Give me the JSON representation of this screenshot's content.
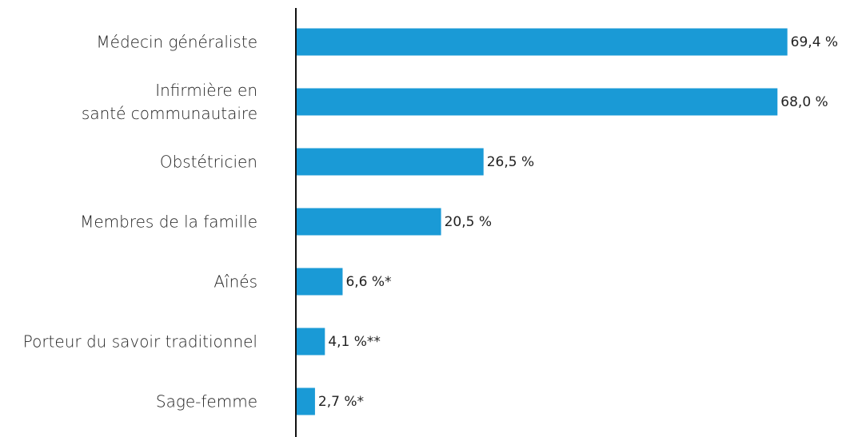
{
  "chart_data": {
    "type": "bar",
    "orientation": "horizontal",
    "categories": [
      "Médecin généraliste",
      "Infirmière en\nsanté communautaire",
      "Obstétricien",
      "Membres de la famille",
      "Aînés",
      "Porteur du savoir traditionnel",
      "Sage-femme"
    ],
    "values": [
      69.4,
      68.0,
      26.5,
      20.5,
      6.6,
      4.1,
      2.7
    ],
    "value_labels": [
      "69,4 %",
      "68,0 %",
      "26,5 %",
      "20,5 %",
      "6,6 %*",
      "4,1 %**",
      "2,7 %*"
    ],
    "color": "#1a9ad6",
    "xlim": [
      0,
      70
    ]
  }
}
